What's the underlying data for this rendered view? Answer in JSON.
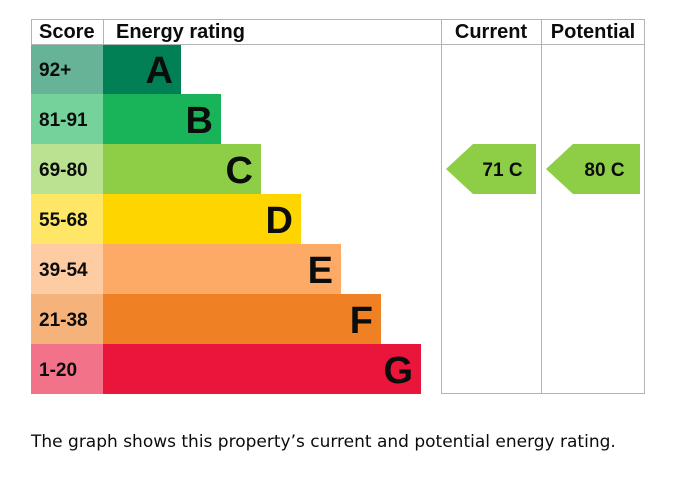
{
  "chart_data": {
    "type": "bar",
    "headers": {
      "score": "Score",
      "energy_rating": "Energy rating",
      "current": "Current",
      "potential": "Potential"
    },
    "bands": [
      {
        "letter": "A",
        "score": "92+",
        "color": "#008054",
        "score_color": "#66b398"
      },
      {
        "letter": "B",
        "score": "81-91",
        "color": "#19b459",
        "score_color": "#75d29b"
      },
      {
        "letter": "C",
        "score": "69-80",
        "color": "#8dce46",
        "score_color": "#bbe290"
      },
      {
        "letter": "D",
        "score": "55-68",
        "color": "#ffd500",
        "score_color": "#ffe666"
      },
      {
        "letter": "E",
        "score": "39-54",
        "color": "#fcaa65",
        "score_color": "#fdcca3"
      },
      {
        "letter": "F",
        "score": "21-38",
        "color": "#ef8023",
        "score_color": "#f5b37b"
      },
      {
        "letter": "G",
        "score": "1-20",
        "color": "#e9153b",
        "score_color": "#f27389"
      }
    ],
    "current": {
      "value": 71,
      "band": "C",
      "label": "71 C",
      "color": "#8dce46"
    },
    "potential": {
      "value": 80,
      "band": "C",
      "label": "80 C",
      "color": "#8dce46"
    }
  },
  "caption": "The graph shows this property’s current and potential energy rating."
}
